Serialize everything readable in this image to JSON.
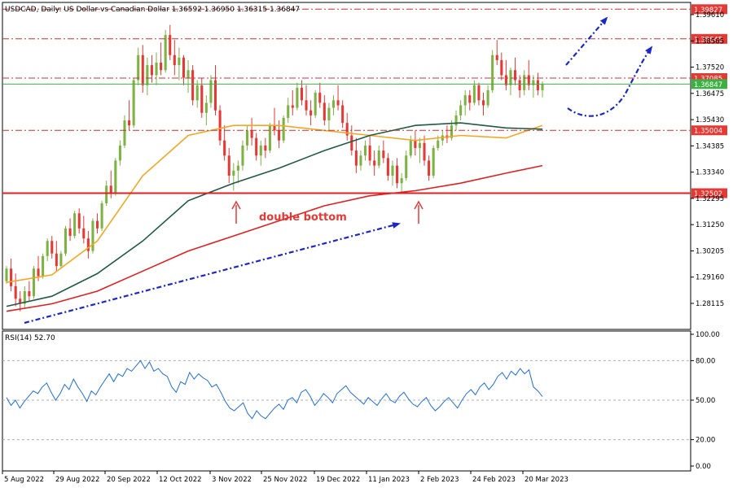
{
  "header": {
    "symbol_line": "USDCAD, Daily:  US Dollar vs Canadian Dollar  1.36592 1.36950 1.36315 1.36847"
  },
  "colors": {
    "background": "#ffffff",
    "frame": "#000000",
    "candle_up": "#7cb342",
    "candle_down": "#e53935",
    "ma_fast": "#f5a623",
    "ma_mid": "#1e5a46",
    "ma_slow": "#e02020",
    "level_dashdot": "#d32f2f",
    "support_line": "#e02020",
    "current_price_line": "#3cb043",
    "price_tag_red": "#e53935",
    "price_tag_green": "#3cb043",
    "rsi_line": "#1e6fd9",
    "rsi_levels": "#b0b0b0",
    "annotation_arrows": "#1a27c9",
    "annotation_text": "#e53935",
    "marker_arrow": "#e53935"
  },
  "chart_data": [
    {
      "type": "candlestick",
      "panel": "price",
      "title": "USDCAD, Daily:  US Dollar vs Canadian Dollar  1.36592 1.36950 1.36315 1.36847",
      "ohlc_last": {
        "open": 1.36592,
        "high": 1.3695,
        "low": 1.36315,
        "close": 1.36847
      },
      "y_axis_ticks": [
        1.3961,
        1.38565,
        1.3752,
        1.36475,
        1.3543,
        1.34385,
        1.3334,
        1.32295,
        1.3125,
        1.30205,
        1.2916,
        1.28115
      ],
      "x_tick_labels": [
        "5 Aug 2022",
        "29 Aug 2022",
        "20 Sep 2022",
        "12 Oct 2022",
        "3 Nov 2022",
        "25 Nov 2022",
        "19 Dec 2022",
        "11 Jan 2023",
        "2 Feb 2023",
        "24 Feb 2023",
        "20 Mar 2023"
      ],
      "ylim": [
        1.2757,
        1.3992
      ],
      "grid": false,
      "horizontal_levels": [
        {
          "price": 1.39827,
          "label": "1.39827",
          "style": "dashdot"
        },
        {
          "price": 1.38645,
          "label": "1.38645",
          "style": "dashdot"
        },
        {
          "price": 1.37085,
          "label": "1.37085",
          "style": "dashdot"
        },
        {
          "price": 1.36847,
          "label": "1.36847",
          "style": "current"
        },
        {
          "price": 1.35004,
          "label": "1.35004",
          "style": "dashdot"
        },
        {
          "price": 1.32502,
          "label": "1.32502",
          "style": "support"
        }
      ],
      "candles_approx": [
        [
          1.29,
          1.296,
          1.289,
          1.295
        ],
        [
          1.295,
          1.299,
          1.286,
          1.288
        ],
        [
          1.288,
          1.293,
          1.28,
          1.283
        ],
        [
          1.283,
          1.286,
          1.278,
          1.281
        ],
        [
          1.281,
          1.288,
          1.279,
          1.286
        ],
        [
          1.286,
          1.29,
          1.282,
          1.284
        ],
        [
          1.284,
          1.296,
          1.283,
          1.295
        ],
        [
          1.295,
          1.3,
          1.29,
          1.292
        ],
        [
          1.292,
          1.301,
          1.291,
          1.3
        ],
        [
          1.3,
          1.307,
          1.298,
          1.306
        ],
        [
          1.306,
          1.308,
          1.299,
          1.301
        ],
        [
          1.301,
          1.306,
          1.294,
          1.296
        ],
        [
          1.296,
          1.302,
          1.295,
          1.301
        ],
        [
          1.301,
          1.312,
          1.3,
          1.311
        ],
        [
          1.311,
          1.315,
          1.306,
          1.308
        ],
        [
          1.308,
          1.318,
          1.307,
          1.317
        ],
        [
          1.317,
          1.319,
          1.309,
          1.311
        ],
        [
          1.311,
          1.316,
          1.305,
          1.307
        ],
        [
          1.307,
          1.31,
          1.299,
          1.302
        ],
        [
          1.302,
          1.315,
          1.301,
          1.314
        ],
        [
          1.314,
          1.317,
          1.309,
          1.311
        ],
        [
          1.311,
          1.322,
          1.31,
          1.321
        ],
        [
          1.321,
          1.33,
          1.32,
          1.328
        ],
        [
          1.328,
          1.334,
          1.323,
          1.325
        ],
        [
          1.325,
          1.339,
          1.324,
          1.338
        ],
        [
          1.338,
          1.346,
          1.336,
          1.344
        ],
        [
          1.344,
          1.356,
          1.343,
          1.354
        ],
        [
          1.354,
          1.362,
          1.35,
          1.352
        ],
        [
          1.352,
          1.371,
          1.351,
          1.37
        ],
        [
          1.37,
          1.383,
          1.368,
          1.38
        ],
        [
          1.38,
          1.384,
          1.365,
          1.368
        ],
        [
          1.368,
          1.379,
          1.364,
          1.376
        ],
        [
          1.376,
          1.38,
          1.369,
          1.372
        ],
        [
          1.372,
          1.381,
          1.368,
          1.377
        ],
        [
          1.377,
          1.385,
          1.372,
          1.374
        ],
        [
          1.374,
          1.39,
          1.373,
          1.388
        ],
        [
          1.388,
          1.392,
          1.378,
          1.38
        ],
        [
          1.38,
          1.386,
          1.372,
          1.376
        ],
        [
          1.376,
          1.383,
          1.37,
          1.379
        ],
        [
          1.379,
          1.38,
          1.368,
          1.371
        ],
        [
          1.371,
          1.378,
          1.365,
          1.374
        ],
        [
          1.374,
          1.376,
          1.36,
          1.362
        ],
        [
          1.362,
          1.37,
          1.359,
          1.368
        ],
        [
          1.368,
          1.371,
          1.355,
          1.357
        ],
        [
          1.357,
          1.364,
          1.352,
          1.361
        ],
        [
          1.361,
          1.372,
          1.359,
          1.37
        ],
        [
          1.37,
          1.376,
          1.356,
          1.358
        ],
        [
          1.358,
          1.36,
          1.344,
          1.346
        ],
        [
          1.346,
          1.352,
          1.338,
          1.34
        ],
        [
          1.34,
          1.343,
          1.329,
          1.332
        ],
        [
          1.332,
          1.337,
          1.326,
          1.334
        ],
        [
          1.334,
          1.338,
          1.329,
          1.336
        ],
        [
          1.336,
          1.346,
          1.334,
          1.344
        ],
        [
          1.344,
          1.352,
          1.342,
          1.35
        ],
        [
          1.35,
          1.355,
          1.344,
          1.347
        ],
        [
          1.347,
          1.349,
          1.338,
          1.34
        ],
        [
          1.34,
          1.346,
          1.336,
          1.344
        ],
        [
          1.344,
          1.347,
          1.339,
          1.342
        ],
        [
          1.342,
          1.353,
          1.341,
          1.352
        ],
        [
          1.352,
          1.359,
          1.348,
          1.35
        ],
        [
          1.35,
          1.354,
          1.343,
          1.346
        ],
        [
          1.346,
          1.356,
          1.345,
          1.355
        ],
        [
          1.355,
          1.363,
          1.353,
          1.36
        ],
        [
          1.36,
          1.366,
          1.356,
          1.359
        ],
        [
          1.359,
          1.369,
          1.358,
          1.367
        ],
        [
          1.367,
          1.37,
          1.36,
          1.362
        ],
        [
          1.362,
          1.368,
          1.356,
          1.358
        ],
        [
          1.358,
          1.362,
          1.352,
          1.356
        ],
        [
          1.356,
          1.366,
          1.355,
          1.365
        ],
        [
          1.365,
          1.369,
          1.359,
          1.361
        ],
        [
          1.361,
          1.364,
          1.352,
          1.354
        ],
        [
          1.354,
          1.361,
          1.35,
          1.359
        ],
        [
          1.359,
          1.364,
          1.356,
          1.362
        ],
        [
          1.362,
          1.368,
          1.358,
          1.36
        ],
        [
          1.36,
          1.362,
          1.351,
          1.353
        ],
        [
          1.353,
          1.357,
          1.346,
          1.348
        ],
        [
          1.348,
          1.352,
          1.34,
          1.342
        ],
        [
          1.342,
          1.347,
          1.333,
          1.336
        ],
        [
          1.336,
          1.342,
          1.334,
          1.34
        ],
        [
          1.34,
          1.346,
          1.338,
          1.344
        ],
        [
          1.344,
          1.348,
          1.336,
          1.338
        ],
        [
          1.338,
          1.342,
          1.332,
          1.336
        ],
        [
          1.336,
          1.344,
          1.335,
          1.342
        ],
        [
          1.342,
          1.346,
          1.337,
          1.339
        ],
        [
          1.339,
          1.341,
          1.33,
          1.332
        ],
        [
          1.332,
          1.338,
          1.328,
          1.336
        ],
        [
          1.336,
          1.339,
          1.327,
          1.329
        ],
        [
          1.329,
          1.333,
          1.325,
          1.331
        ],
        [
          1.331,
          1.342,
          1.33,
          1.34
        ],
        [
          1.34,
          1.348,
          1.339,
          1.346
        ],
        [
          1.346,
          1.35,
          1.34,
          1.343
        ],
        [
          1.343,
          1.347,
          1.337,
          1.345
        ],
        [
          1.345,
          1.348,
          1.336,
          1.338
        ],
        [
          1.338,
          1.34,
          1.33,
          1.332
        ],
        [
          1.332,
          1.344,
          1.331,
          1.343
        ],
        [
          1.343,
          1.348,
          1.342,
          1.346
        ],
        [
          1.346,
          1.35,
          1.344,
          1.348
        ],
        [
          1.348,
          1.352,
          1.345,
          1.347
        ],
        [
          1.347,
          1.354,
          1.346,
          1.352
        ],
        [
          1.352,
          1.358,
          1.35,
          1.356
        ],
        [
          1.356,
          1.362,
          1.354,
          1.36
        ],
        [
          1.36,
          1.366,
          1.356,
          1.364
        ],
        [
          1.364,
          1.366,
          1.358,
          1.361
        ],
        [
          1.361,
          1.37,
          1.36,
          1.368
        ],
        [
          1.368,
          1.369,
          1.36,
          1.362
        ],
        [
          1.362,
          1.365,
          1.356,
          1.36
        ],
        [
          1.36,
          1.368,
          1.359,
          1.366
        ],
        [
          1.366,
          1.382,
          1.365,
          1.38
        ],
        [
          1.38,
          1.386,
          1.376,
          1.378
        ],
        [
          1.378,
          1.381,
          1.37,
          1.372
        ],
        [
          1.372,
          1.378,
          1.366,
          1.368
        ],
        [
          1.368,
          1.375,
          1.364,
          1.374
        ],
        [
          1.374,
          1.379,
          1.368,
          1.37
        ],
        [
          1.37,
          1.372,
          1.363,
          1.366
        ],
        [
          1.366,
          1.374,
          1.364,
          1.372
        ],
        [
          1.372,
          1.378,
          1.366,
          1.368
        ],
        [
          1.368,
          1.372,
          1.363,
          1.37
        ],
        [
          1.37,
          1.373,
          1.364,
          1.366
        ],
        [
          1.366,
          1.3695,
          1.3632,
          1.3685
        ]
      ],
      "moving_averages": [
        {
          "color_key": "ma_fast",
          "points": [
            [
              0,
              1.2895
            ],
            [
              10,
              1.2925
            ],
            [
              20,
              1.306
            ],
            [
              30,
              1.332
            ],
            [
              40,
              1.348
            ],
            [
              50,
              1.352
            ],
            [
              60,
              1.352
            ],
            [
              70,
              1.35
            ],
            [
              80,
              1.348
            ],
            [
              90,
              1.346
            ],
            [
              100,
              1.348
            ],
            [
              110,
              1.347
            ],
            [
              118,
              1.352
            ]
          ]
        },
        {
          "color_key": "ma_mid",
          "points": [
            [
              0,
              1.28
            ],
            [
              10,
              1.284
            ],
            [
              20,
              1.293
            ],
            [
              30,
              1.306
            ],
            [
              40,
              1.322
            ],
            [
              50,
              1.329
            ],
            [
              60,
              1.335
            ],
            [
              70,
              1.342
            ],
            [
              80,
              1.348
            ],
            [
              90,
              1.352
            ],
            [
              100,
              1.353
            ],
            [
              110,
              1.351
            ],
            [
              118,
              1.3505
            ]
          ]
        },
        {
          "color_key": "ma_slow",
          "points": [
            [
              0,
              1.278
            ],
            [
              10,
              1.281
            ],
            [
              20,
              1.286
            ],
            [
              30,
              1.294
            ],
            [
              40,
              1.302
            ],
            [
              50,
              1.308
            ],
            [
              60,
              1.314
            ],
            [
              70,
              1.32
            ],
            [
              80,
              1.324
            ],
            [
              90,
              1.326
            ],
            [
              100,
              1.329
            ],
            [
              110,
              1.333
            ],
            [
              118,
              1.336
            ]
          ]
        }
      ]
    },
    {
      "type": "line",
      "panel": "rsi",
      "title": "RSI(14) 52.70",
      "y_axis_ticks": [
        "100.00",
        "80.00",
        "50.00",
        "20.00",
        "0.00"
      ],
      "ylim": [
        0,
        100
      ],
      "reference_levels": [
        80,
        50,
        20
      ],
      "series": [
        {
          "values": [
            52,
            46,
            50,
            44,
            49,
            53,
            57,
            55,
            60,
            63,
            56,
            50,
            55,
            62,
            58,
            66,
            60,
            55,
            49,
            57,
            54,
            60,
            65,
            70,
            64,
            70,
            68,
            74,
            72,
            76,
            80,
            74,
            79,
            72,
            74,
            70,
            68,
            60,
            56,
            64,
            62,
            71,
            66,
            70,
            67,
            65,
            60,
            62,
            56,
            49,
            44,
            42,
            45,
            48,
            40,
            36,
            42,
            38,
            36,
            40,
            44,
            47,
            43,
            50,
            52,
            48,
            56,
            58,
            53,
            46,
            50,
            55,
            52,
            48,
            55,
            58,
            61,
            56,
            53,
            50,
            47,
            52,
            49,
            46,
            51,
            55,
            50,
            48,
            53,
            56,
            51,
            47,
            45,
            49,
            52,
            46,
            42,
            45,
            49,
            52,
            48,
            44,
            50,
            55,
            58,
            54,
            60,
            63,
            58,
            62,
            68,
            71,
            66,
            72,
            69,
            74,
            70,
            73,
            60,
            57,
            52.7
          ]
        }
      ]
    }
  ],
  "annotations": {
    "double_bottom_label": "double bottom"
  }
}
